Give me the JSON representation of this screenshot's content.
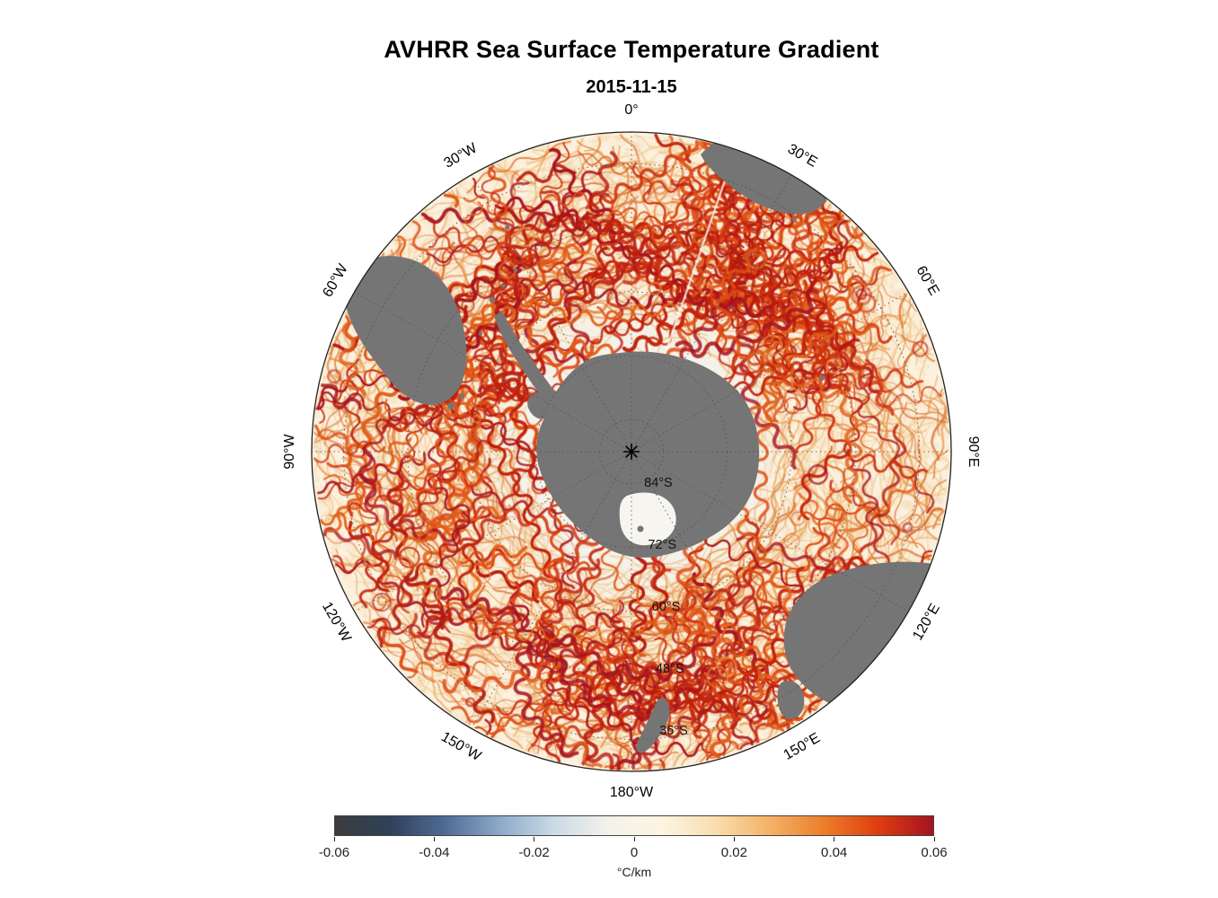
{
  "chart_data": {
    "type": "heatmap",
    "title": "AVHRR Sea Surface Temperature Gradient",
    "subtitle": "2015-11-15",
    "projection": "South polar stereographic",
    "longitude_gridlines_deg": 30,
    "longitude_labels": [
      "0°",
      "30°E",
      "60°E",
      "90°E",
      "120°E",
      "150°E",
      "180°W",
      "150°W",
      "120°W",
      "90°W",
      "60°W",
      "30°W"
    ],
    "longitude_angles_deg": [
      0,
      30,
      60,
      90,
      120,
      150,
      180,
      -150,
      -120,
      -90,
      -60,
      -30
    ],
    "latitude_labels": [
      "84°S",
      "72°S",
      "60°S",
      "48°S",
      "36°S"
    ],
    "latitude_ring_degrees": [
      84,
      72,
      60,
      48,
      36
    ],
    "outer_latitude_deg": 30,
    "land_features": [
      "Antarctica",
      "Antarctic Peninsula",
      "South America",
      "Southern Africa",
      "Australia",
      "Tasmania",
      "New Zealand"
    ],
    "colorbar": {
      "label": "°C/km",
      "min": -0.06,
      "max": 0.06,
      "tick_labels": [
        "-0.06",
        "-0.04",
        "-0.02",
        "0",
        "0.02",
        "0.04",
        "0.06"
      ],
      "gradient": [
        "#3c3c3e",
        "#2f4158",
        "#4e6a94",
        "#8aa8c8",
        "#c9d9e6",
        "#f3f2ea",
        "#fdf5e2",
        "#f9ddae",
        "#f4b266",
        "#ec7d2a",
        "#dd3d10",
        "#a31322"
      ]
    },
    "colors": {
      "land": "#757575",
      "ocean_base": "#fcf1de",
      "polar_interior": "#f5f2ea",
      "front_strong": "#c2220c",
      "front_medium": "#e07430",
      "front_light": "#f2c286"
    }
  }
}
